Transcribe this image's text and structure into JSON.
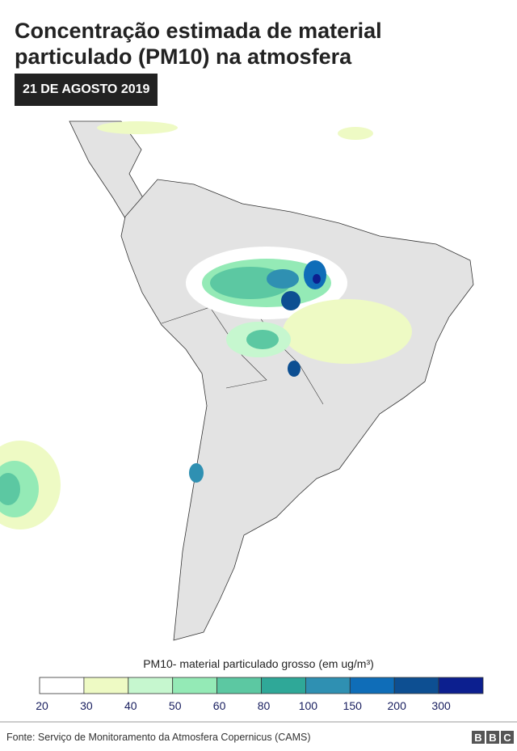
{
  "header": {
    "title_lines": [
      "Concentração estimada de material",
      "particulado (PM10) na atmosfera"
    ],
    "date": "21 DE AGOSTO 2019"
  },
  "legend": {
    "title": "PM10- material particulado grosso (em ug/m³)",
    "ticks": [
      20,
      30,
      40,
      50,
      60,
      80,
      100,
      150,
      200,
      300
    ],
    "colors": [
      "#ffffff",
      "#eefac4",
      "#c6f7cf",
      "#94eab6",
      "#5cc8a2",
      "#2fa898",
      "#2f90b2",
      "#0f6db8",
      "#0d4f92",
      "#0c1f8f"
    ]
  },
  "footer": {
    "source": "Fonte: Serviço de Monitoramento da Atmosfera Copernicus (CAMS)",
    "logo": [
      "B",
      "B",
      "C"
    ]
  }
}
